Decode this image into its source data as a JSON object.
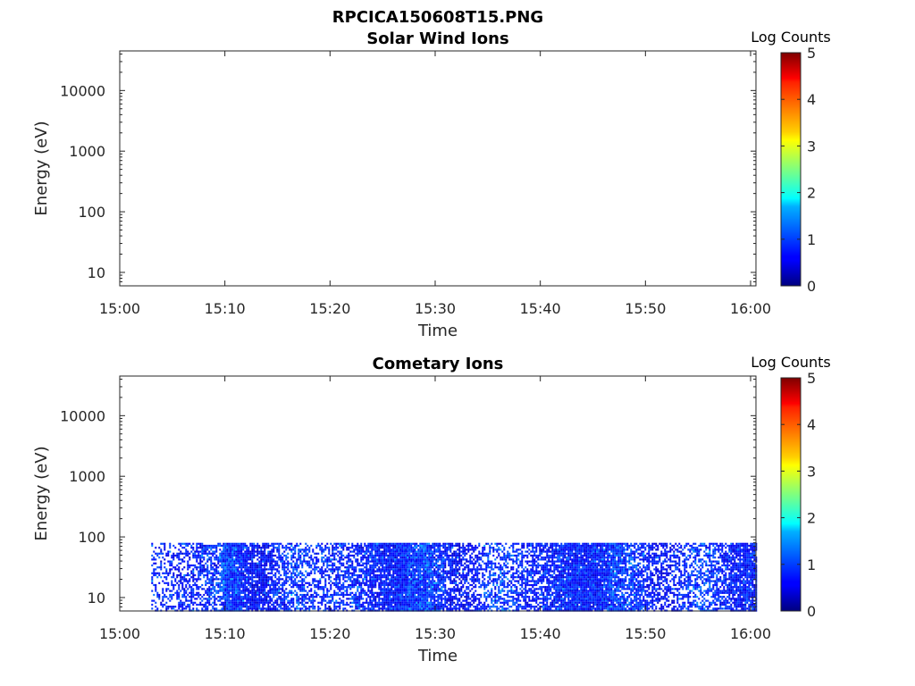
{
  "figure": {
    "title": "RPCICA150608T15.PNG"
  },
  "chart_data": [
    {
      "type": "heatmap",
      "title": "Solar Wind Ions",
      "xlabel": "Time",
      "ylabel": "Energy (eV)",
      "x_ticks": [
        "15:00",
        "15:10",
        "15:20",
        "15:30",
        "15:40",
        "15:50",
        "16:00"
      ],
      "xlim": [
        "15:00",
        "16:00"
      ],
      "y_scale": "log",
      "y_ticks": [
        "10",
        "100",
        "1000",
        "10000"
      ],
      "ylim": [
        6,
        45000
      ],
      "colorbar": {
        "title": "Log Counts",
        "ticks": [
          "0",
          "1",
          "2",
          "3",
          "4",
          "5"
        ],
        "range": [
          0,
          5
        ],
        "colormap": "jet"
      },
      "data_region": null,
      "note_values": []
    },
    {
      "type": "heatmap",
      "title": "Cometary Ions",
      "xlabel": "Time",
      "ylabel": "Energy (eV)",
      "x_ticks": [
        "15:00",
        "15:10",
        "15:20",
        "15:30",
        "15:40",
        "15:50",
        "16:00"
      ],
      "xlim": [
        "15:00",
        "16:00"
      ],
      "y_scale": "log",
      "y_ticks": [
        "10",
        "100",
        "1000",
        "10000"
      ],
      "ylim": [
        6,
        45000
      ],
      "colorbar": {
        "title": "Log Counts",
        "ticks": [
          "0",
          "1",
          "2",
          "3",
          "4",
          "5"
        ],
        "range": [
          0,
          5
        ],
        "colormap": "jet"
      },
      "data_region": {
        "time_start": "15:03",
        "time_end": "16:00",
        "energy_min": 6,
        "energy_max": 80,
        "log_counts_range": [
          0,
          1.6
        ]
      }
    }
  ]
}
